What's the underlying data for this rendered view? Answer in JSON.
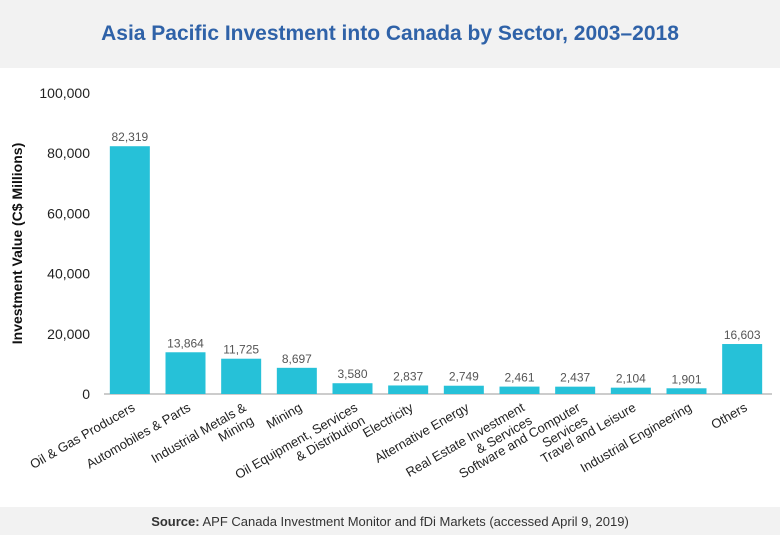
{
  "header": {
    "title": "Asia Pacific Investment into Canada by Sector, 2003–2018"
  },
  "footer": {
    "source_label": "Source:",
    "source_text": " APF Canada Investment Monitor and fDi Markets (accessed April 9, 2019)"
  },
  "colors": {
    "bar": "#26c1d8",
    "title": "#2f62a8",
    "band": "#f2f2f2"
  },
  "chart_data": {
    "type": "bar",
    "title": "Asia Pacific Investment into Canada by Sector, 2003–2018",
    "xlabel": "",
    "ylabel": "Investment Value (C$ Millions)",
    "ylim": [
      0,
      100000
    ],
    "yticks": [
      "0",
      "20,000",
      "40,000",
      "60,000",
      "80,000",
      "100,000"
    ],
    "ytick_values": [
      0,
      20000,
      40000,
      60000,
      80000,
      100000
    ],
    "grid": false,
    "categories": [
      [
        "Oil & Gas Producers"
      ],
      [
        "Automobiles & Parts"
      ],
      [
        "Industrial Metals &",
        "Mining"
      ],
      [
        "Mining"
      ],
      [
        "Oil Equipment, Services",
        "& Distribution"
      ],
      [
        "Electricity"
      ],
      [
        "Alternative Energy"
      ],
      [
        "Real Estate Investment",
        "& Services"
      ],
      [
        "Software and Computer",
        "Services"
      ],
      [
        "Travel and Leisure"
      ],
      [
        "Industrial Engineering"
      ],
      [
        "Others"
      ]
    ],
    "values": [
      82319,
      13864,
      11725,
      8697,
      3580,
      2837,
      2749,
      2461,
      2437,
      2104,
      1901,
      16603
    ],
    "data_labels": [
      "82,319",
      "13,864",
      "11,725",
      "8,697",
      "3,580",
      "2,837",
      "2,749",
      "2,461",
      "2,437",
      "2,104",
      "1,901",
      "16,603"
    ]
  }
}
